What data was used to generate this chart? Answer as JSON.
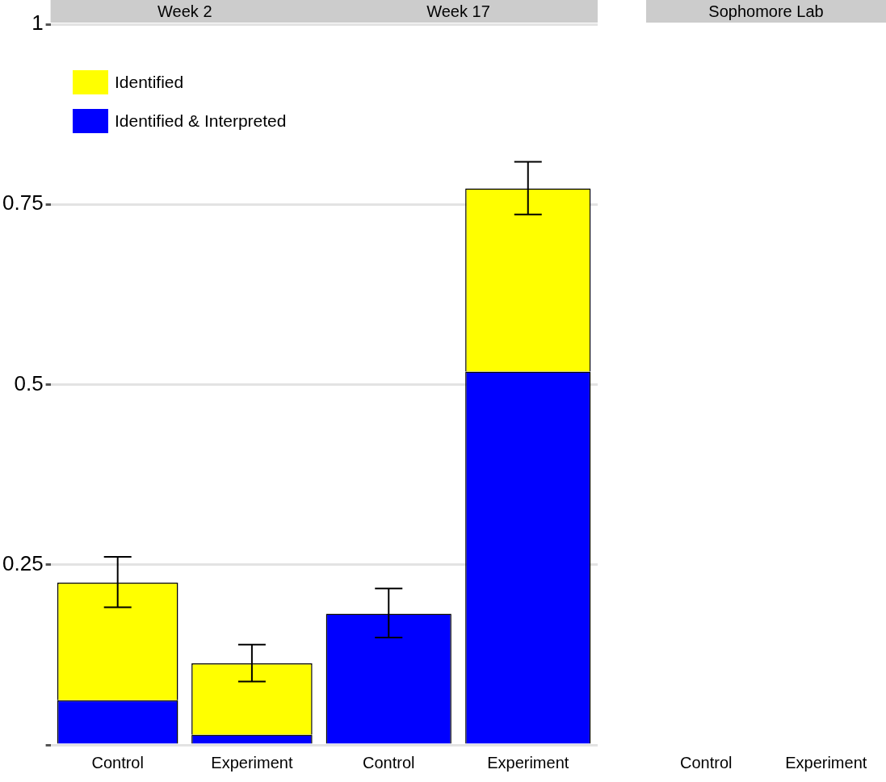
{
  "chart_data": [
    {
      "type": "bar",
      "title": "Week 2",
      "categories": [
        "Control",
        "Experiment"
      ],
      "stacked": true,
      "ylim": [
        0,
        1
      ],
      "yticks": [
        {
          "value": 0,
          "label": null
        },
        {
          "value": 0.25,
          "label": "0.25"
        },
        {
          "value": 0.5,
          "label": "0.5"
        },
        {
          "value": 0.75,
          "label": "0.75"
        },
        1
      ],
      "grid": "y",
      "legend": "top",
      "series": [
        {
          "name": "Identified & Interpreted",
          "color": "#0000ff",
          "values": [
            0.062,
            0.014
          ]
        },
        {
          "name": "Identified",
          "color": "#ffff00",
          "values": [
            0.163,
            0.099
          ],
          "errors": [
            [
              0.191,
              0.261
            ],
            [
              0.088,
              0.139
            ]
          ]
        }
      ]
    },
    {
      "type": "bar",
      "title": "Week 17",
      "categories": [
        "Control",
        "Experiment"
      ],
      "stacked": true,
      "ylim": [
        0,
        1
      ],
      "yticks": [
        0,
        0.25,
        0.5,
        0.75,
        1
      ],
      "grid": "y",
      "tick_labels": "x",
      "series": [
        {
          "color": "#0000ff",
          "values": [
            0.182,
            0.518
          ]
        },
        {
          "color": "#ffff00",
          "values": [
            0,
            0.254
          ],
          "errors": [
            [
              0.149,
              0.217
            ],
            [
              0.736,
              0.809
            ]
          ]
        }
      ]
    },
    {
      "type": "bar",
      "title": "Sophomore Lab",
      "categories": [
        "Control",
        "Experiment"
      ],
      "stacked": true,
      "ylim": [
        0,
        1
      ],
      "tick_labels": "x",
      "series": [
        {
          "color": "#0000ff",
          "values": [
            null,
            null
          ]
        },
        {
          "color": "#ffff00",
          "values": [
            null,
            null
          ]
        }
      ]
    }
  ]
}
